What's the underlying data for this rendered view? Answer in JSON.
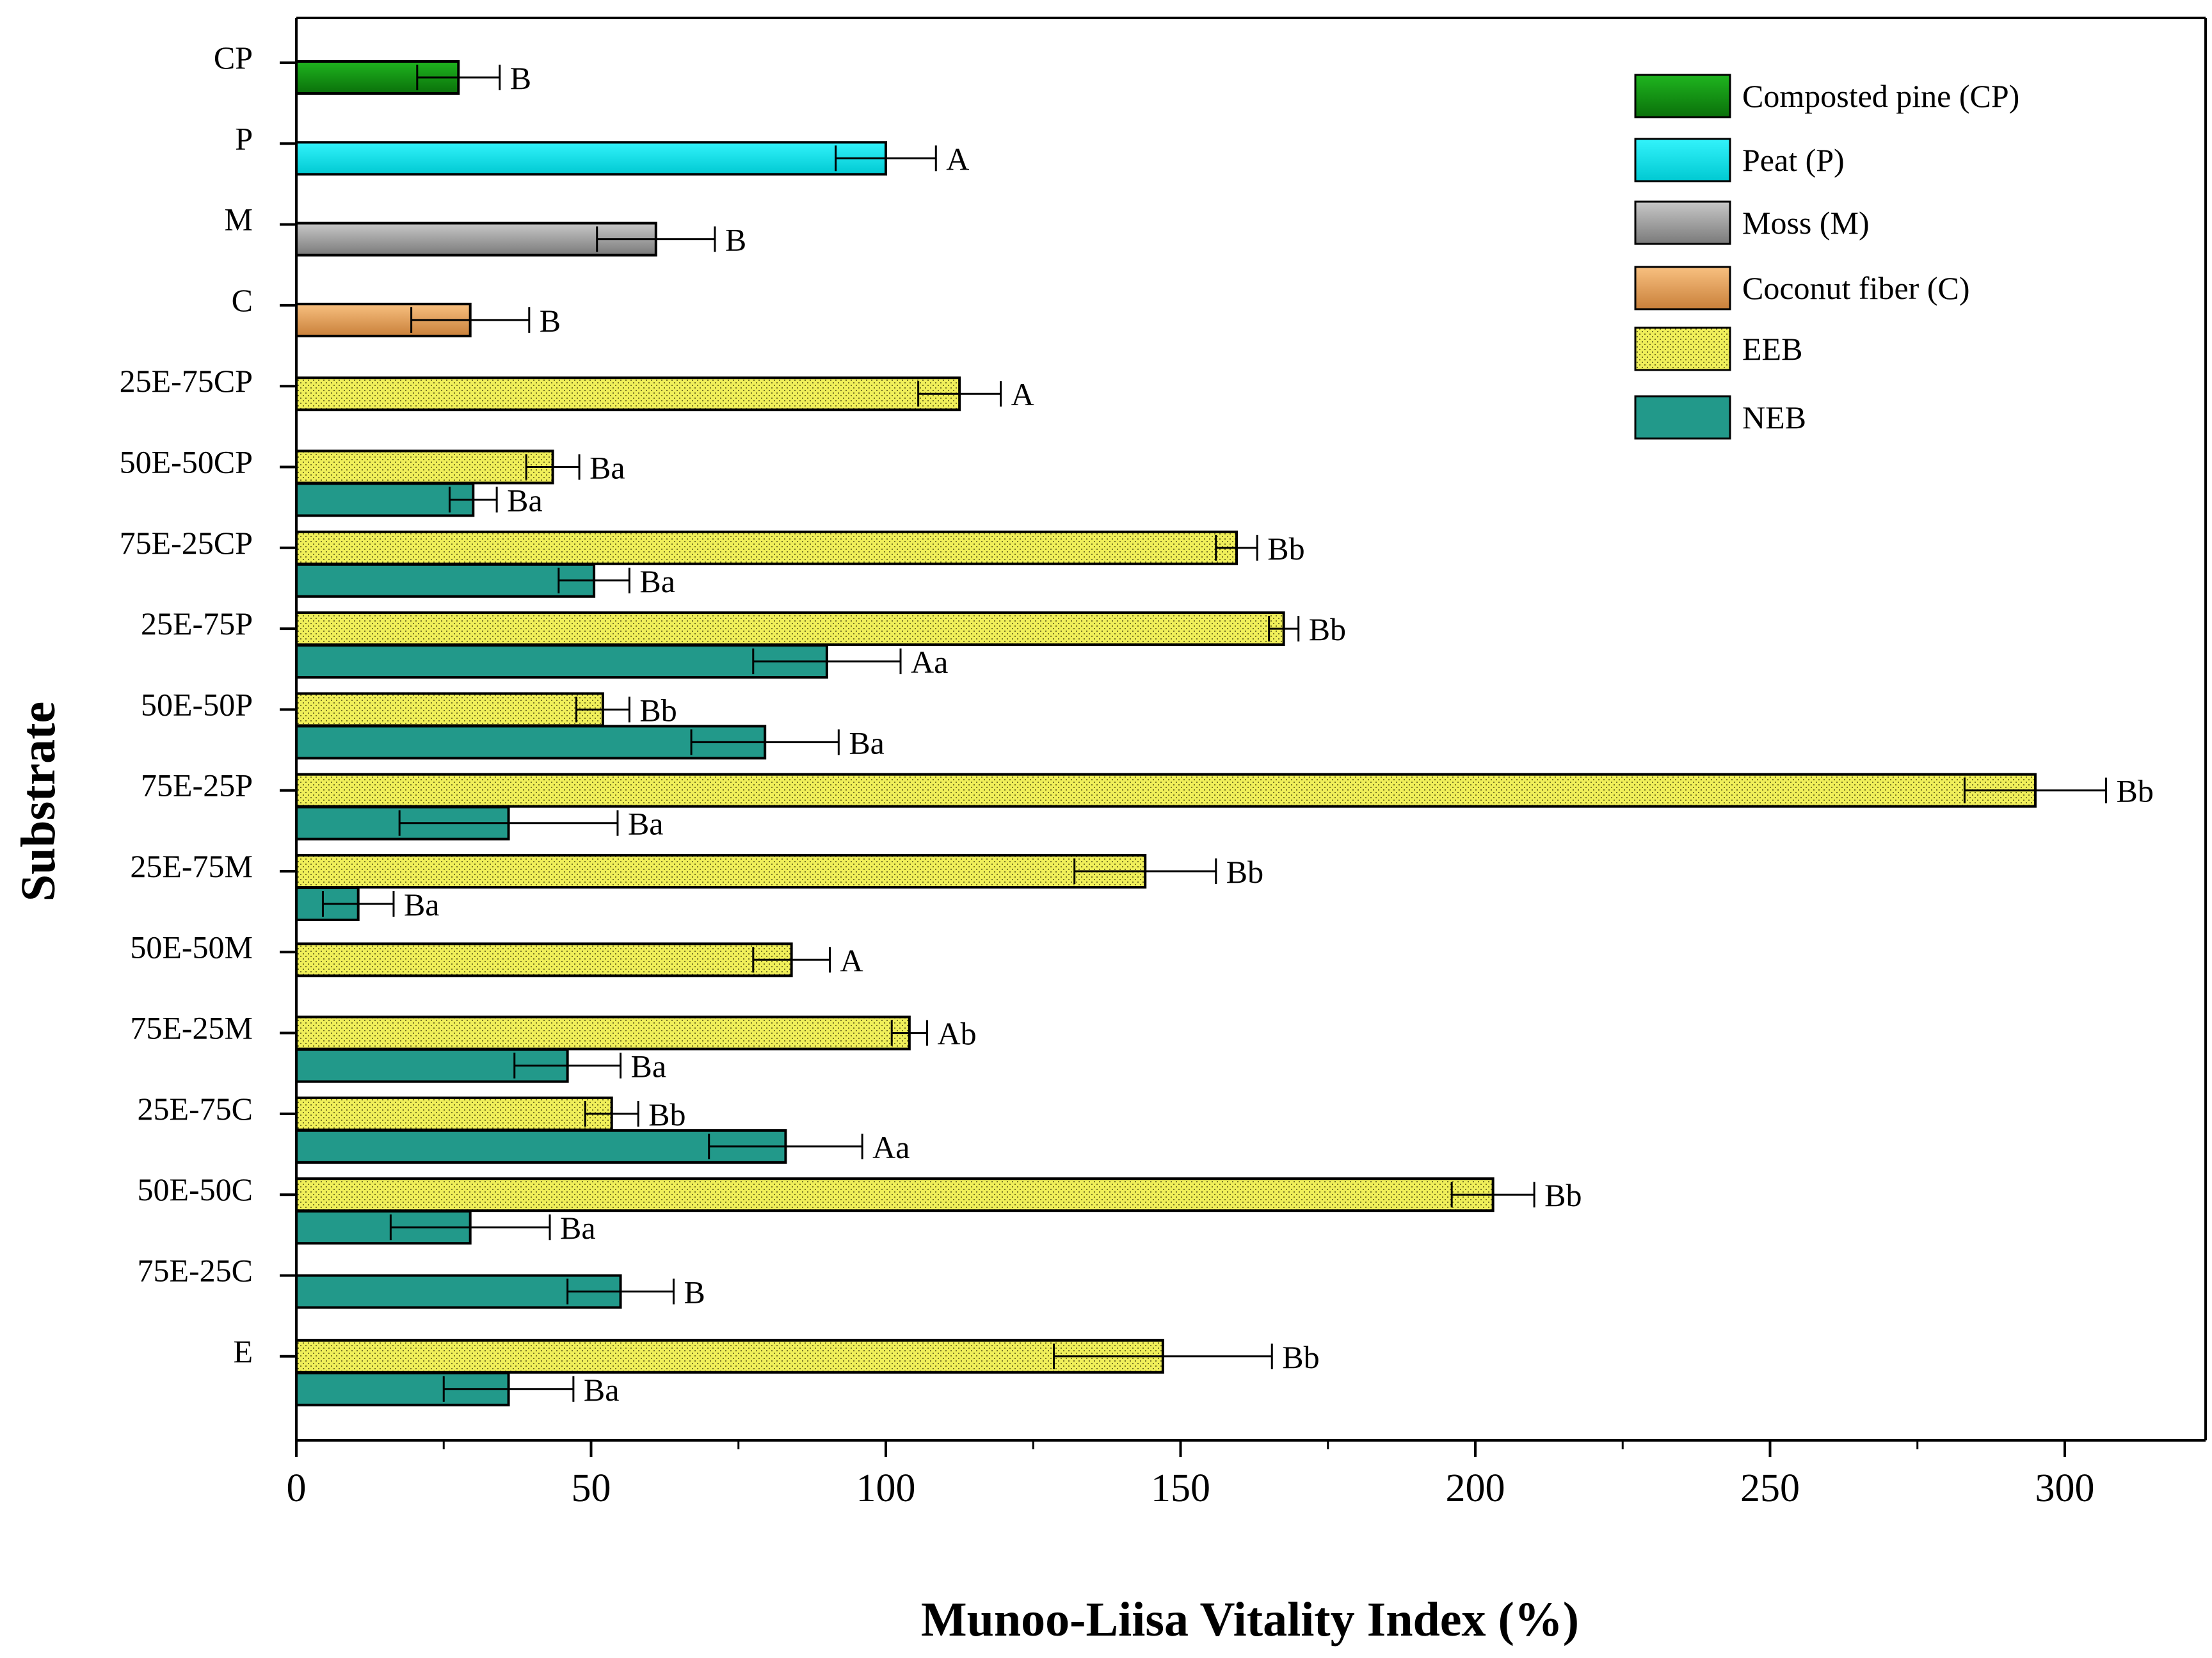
{
  "chart_data": {
    "type": "bar",
    "orientation": "horizontal",
    "xlabel": "Munoo-Liisa Vitality Index (%)",
    "ylabel": "Substrate",
    "xlim": [
      0,
      325
    ],
    "xticks": [
      0,
      50,
      100,
      150,
      200,
      250,
      300
    ],
    "categories": [
      "CP",
      "P",
      "M",
      "C",
      "25E-75CP",
      "50E-50CP",
      "75E-25CP",
      "25E-75P",
      "50E-50P",
      "75E-25P",
      "25E-75M",
      "50E-50M",
      "75E-25M",
      "25E-75C",
      "50E-50C",
      "75E-25C",
      "E"
    ],
    "legend_position": "top-right",
    "series": [
      {
        "key": "CP",
        "name": "Composted pine (CP)",
        "color": "#0d8c0d",
        "pattern": "gradient",
        "bars": [
          {
            "category": "CP",
            "value": 27.5,
            "error": 7,
            "label": "B"
          }
        ]
      },
      {
        "key": "P",
        "name": "Peat (P)",
        "color": "#00e5ef",
        "pattern": "gradient",
        "bars": [
          {
            "category": "P",
            "value": 100,
            "error": 8.5,
            "label": "A"
          }
        ]
      },
      {
        "key": "M",
        "name": "Moss (M)",
        "color": "#9e9e9e",
        "pattern": "gradient",
        "bars": [
          {
            "category": "M",
            "value": 61,
            "error": 10,
            "label": "B"
          }
        ]
      },
      {
        "key": "C",
        "name": "Coconut fiber (C)",
        "color": "#f4a55a",
        "pattern": "gradient",
        "bars": [
          {
            "category": "C",
            "value": 29.5,
            "error": 10,
            "label": "B"
          }
        ]
      },
      {
        "key": "EEB",
        "name": "EEB",
        "color": "#f0ef5a",
        "pattern": "dots",
        "bars": [
          {
            "category": "25E-75CP",
            "value": 112.5,
            "error": 7,
            "label": "A"
          },
          {
            "category": "50E-50CP",
            "value": 43.5,
            "error": 4.5,
            "label": "Ba"
          },
          {
            "category": "75E-25CP",
            "value": 159.5,
            "error": 3.5,
            "label": "Bb"
          },
          {
            "category": "25E-75P",
            "value": 167.5,
            "error": 2.5,
            "label": "Bb"
          },
          {
            "category": "50E-50P",
            "value": 52,
            "error": 4.5,
            "label": "Bb"
          },
          {
            "category": "75E-25P",
            "value": 295,
            "error": 12,
            "label": "Bb"
          },
          {
            "category": "25E-75M",
            "value": 144,
            "error": 12,
            "label": "Bb"
          },
          {
            "category": "50E-50M",
            "value": 84,
            "error": 6.5,
            "label": "A"
          },
          {
            "category": "75E-25M",
            "value": 104,
            "error": 3,
            "label": "Ab"
          },
          {
            "category": "25E-75C",
            "value": 53.5,
            "error": 4.5,
            "label": "Bb"
          },
          {
            "category": "50E-50C",
            "value": 203,
            "error": 7,
            "label": "Bb"
          },
          {
            "category": "E",
            "value": 147,
            "error": 18.5,
            "label": "Bb"
          }
        ]
      },
      {
        "key": "NEB",
        "name": "NEB",
        "color": "#22998a",
        "pattern": "solid",
        "bars": [
          {
            "category": "50E-50CP",
            "value": 30,
            "error": 4,
            "label": "Ba"
          },
          {
            "category": "75E-25CP",
            "value": 50.5,
            "error": 6,
            "label": "Ba"
          },
          {
            "category": "25E-75P",
            "value": 90,
            "error": 12.5,
            "label": "Aa"
          },
          {
            "category": "50E-50P",
            "value": 79.5,
            "error": 12.5,
            "label": "Ba"
          },
          {
            "category": "75E-25P",
            "value": 36,
            "error": 18.5,
            "label": "Ba"
          },
          {
            "category": "25E-75M",
            "value": 10.5,
            "error": 6,
            "label": "Ba"
          },
          {
            "category": "75E-25M",
            "value": 46,
            "error": 9,
            "label": "Ba"
          },
          {
            "category": "25E-75C",
            "value": 83,
            "error": 13,
            "label": "Aa"
          },
          {
            "category": "50E-50C",
            "value": 29.5,
            "error": 13.5,
            "label": "Ba"
          },
          {
            "category": "75E-25C",
            "value": 55,
            "error": 9,
            "label": "B"
          },
          {
            "category": "E",
            "value": 36,
            "error": 11,
            "label": "Ba"
          }
        ]
      }
    ]
  }
}
